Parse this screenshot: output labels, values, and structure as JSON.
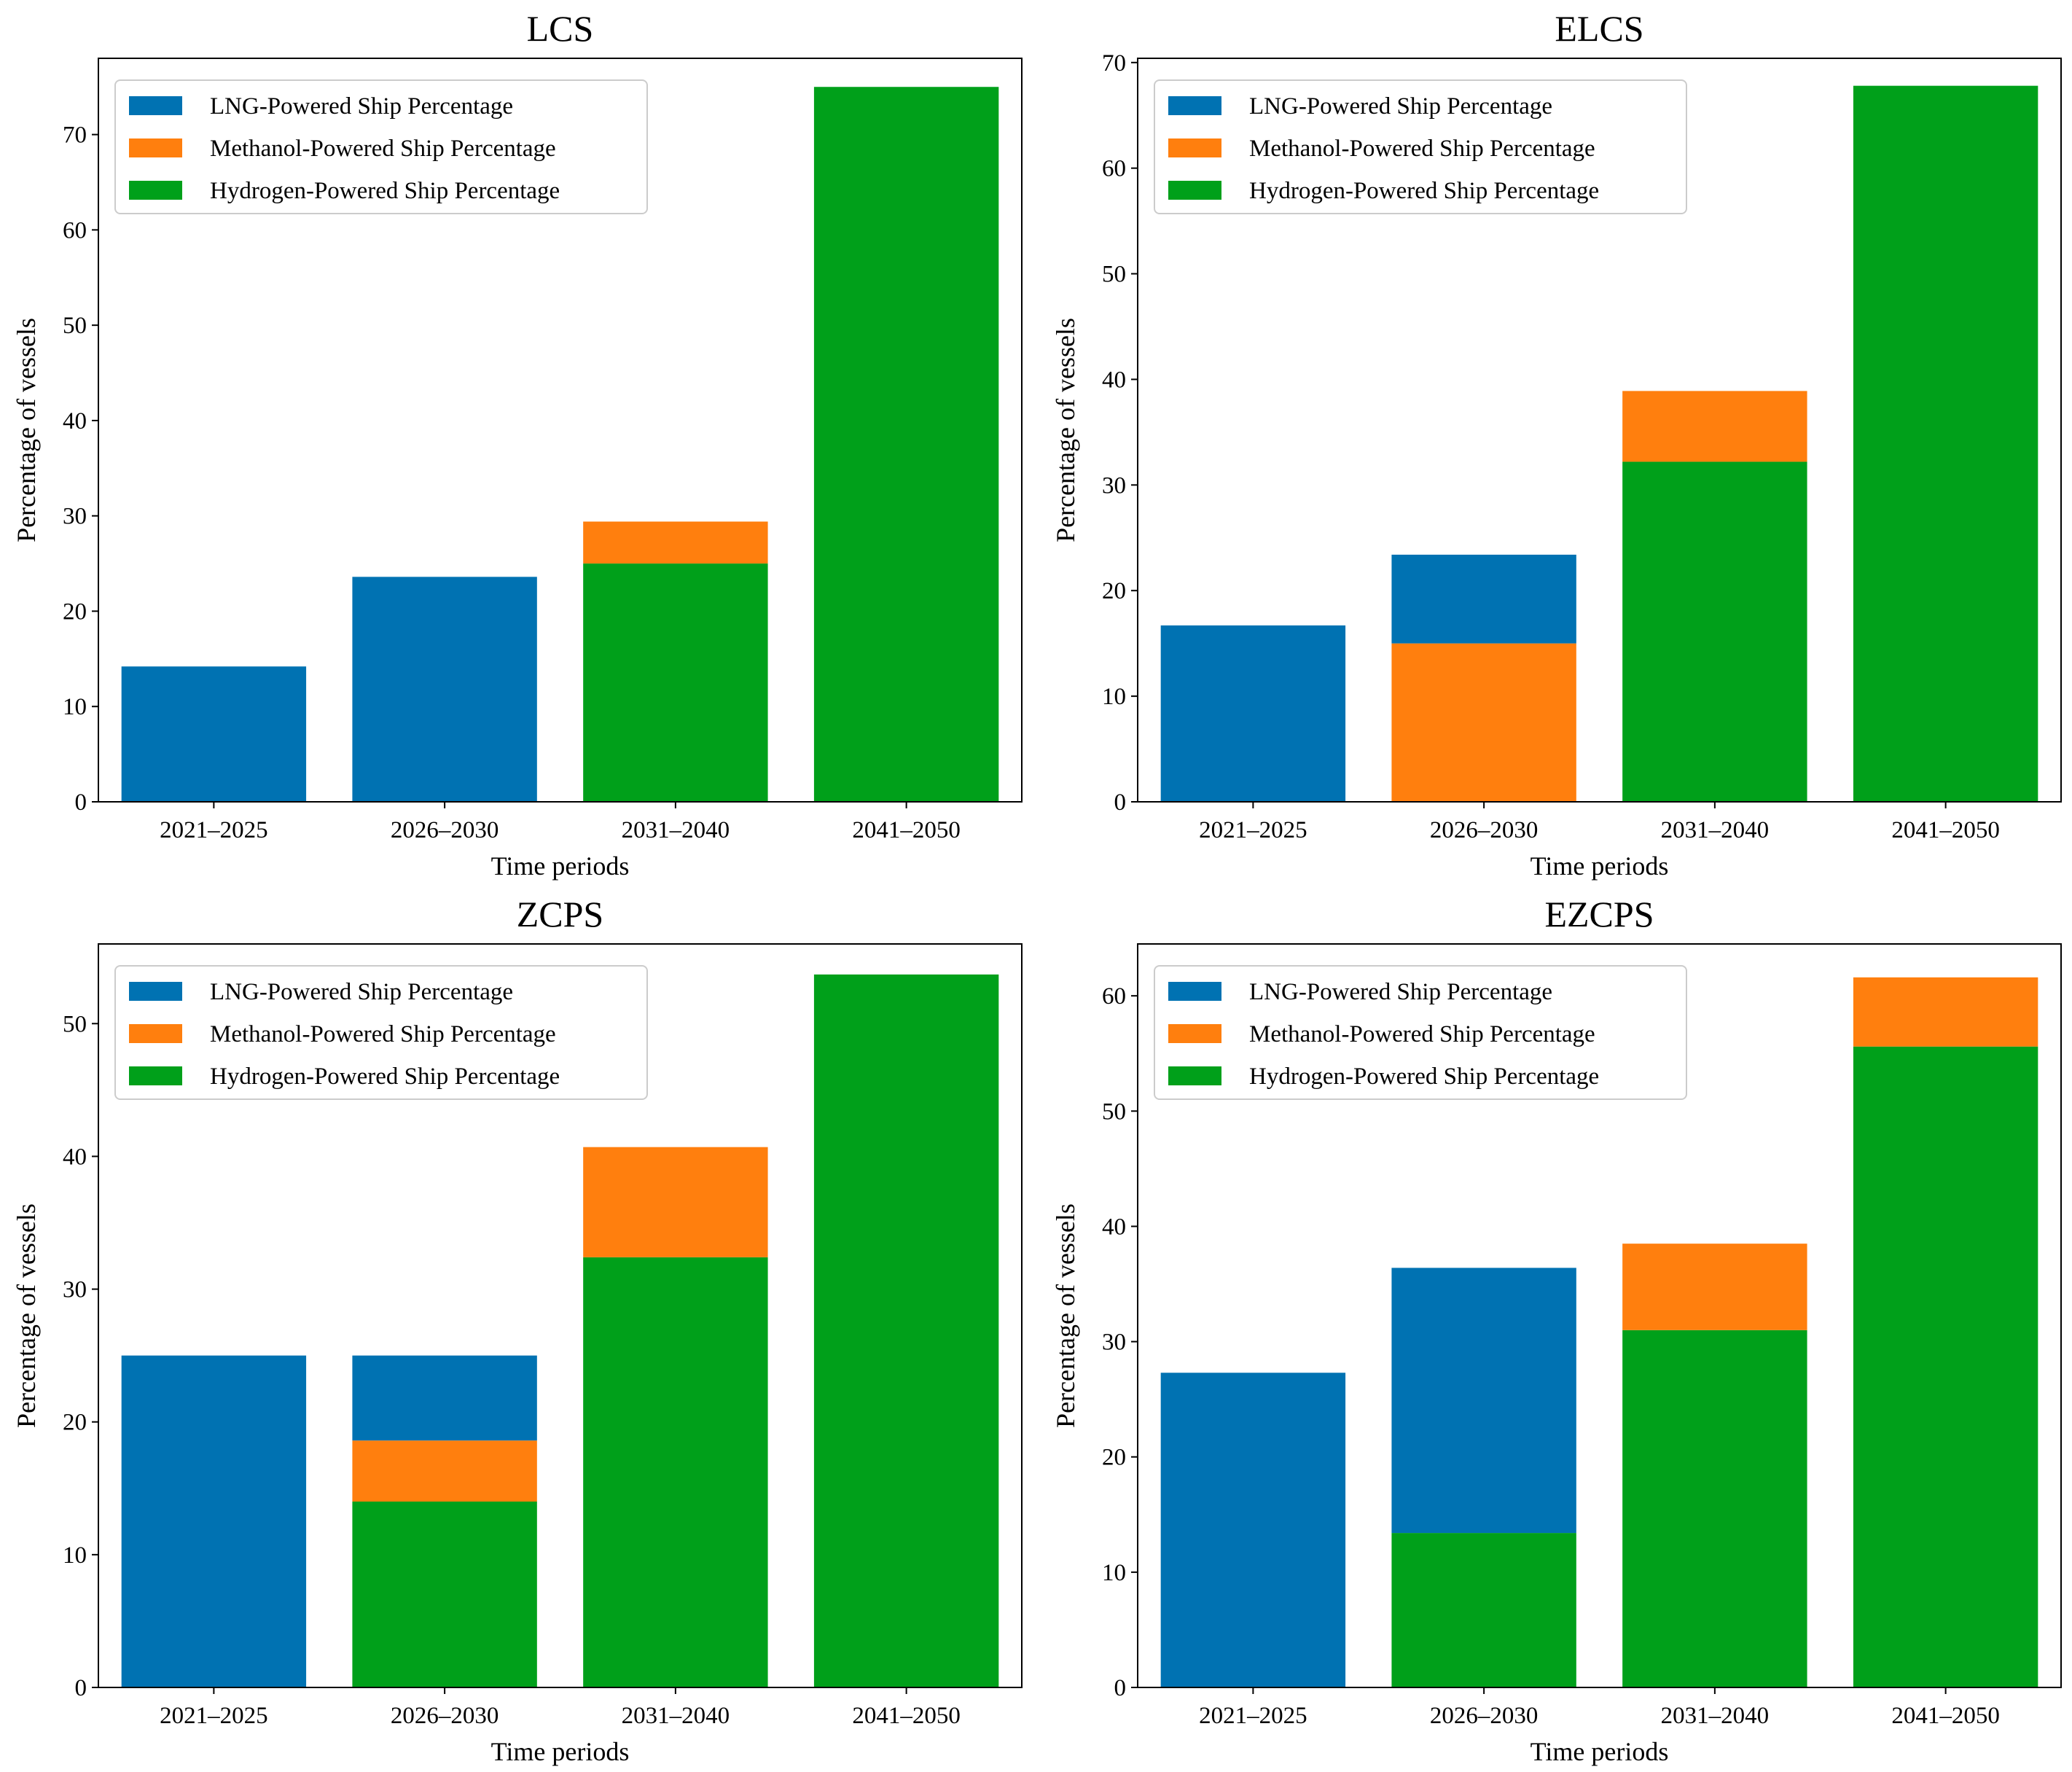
{
  "colors": {
    "lng": "#0072b2",
    "methanol": "#ff7f0e",
    "hydrogen": "#00a01a"
  },
  "chart_data": [
    {
      "type": "bar",
      "stacked": true,
      "title": "LCS",
      "xlabel": "Time periods",
      "ylabel": "Percentage of vessels",
      "categories": [
        "2021–2025",
        "2026–2030",
        "2031–2040",
        "2041–2050"
      ],
      "ylim": [
        0,
        78
      ],
      "yticks": [
        0,
        10,
        20,
        30,
        40,
        50,
        60,
        70
      ],
      "legend_position": "upper-left",
      "legend": [
        "LNG-Powered Ship Percentage",
        "Methanol-Powered Ship Percentage",
        "Hydrogen-Powered Ship Percentage"
      ],
      "series": [
        {
          "name": "Hydrogen-Powered Ship Percentage",
          "key": "hydrogen",
          "values": [
            0,
            0,
            25.0,
            75.0
          ]
        },
        {
          "name": "Methanol-Powered Ship Percentage",
          "key": "methanol",
          "values": [
            0,
            0,
            4.4,
            0
          ]
        },
        {
          "name": "LNG-Powered Ship Percentage",
          "key": "lng",
          "values": [
            14.2,
            23.6,
            0,
            0
          ]
        }
      ]
    },
    {
      "type": "bar",
      "stacked": true,
      "title": "ELCS",
      "xlabel": "Time periods",
      "ylabel": "Percentage of vessels",
      "categories": [
        "2021–2025",
        "2026–2030",
        "2031–2040",
        "2041–2050"
      ],
      "ylim": [
        0,
        70.4
      ],
      "yticks": [
        0,
        10,
        20,
        30,
        40,
        50,
        60,
        70
      ],
      "legend_position": "upper-left",
      "legend": [
        "LNG-Powered Ship Percentage",
        "Methanol-Powered Ship Percentage",
        "Hydrogen-Powered Ship Percentage"
      ],
      "series": [
        {
          "name": "Hydrogen-Powered Ship Percentage",
          "key": "hydrogen",
          "values": [
            0,
            0,
            32.2,
            67.8
          ]
        },
        {
          "name": "Methanol-Powered Ship Percentage",
          "key": "methanol",
          "values": [
            0,
            15.0,
            6.7,
            0
          ]
        },
        {
          "name": "LNG-Powered Ship Percentage",
          "key": "lng",
          "values": [
            16.7,
            8.4,
            0,
            0
          ]
        }
      ]
    },
    {
      "type": "bar",
      "stacked": true,
      "title": "ZCPS",
      "xlabel": "Time periods",
      "ylabel": "Percentage of vessels",
      "categories": [
        "2021–2025",
        "2026–2030",
        "2031–2040",
        "2041–2050"
      ],
      "ylim": [
        0,
        56
      ],
      "yticks": [
        0,
        10,
        20,
        30,
        40,
        50
      ],
      "legend_position": "upper-left",
      "legend": [
        "LNG-Powered Ship Percentage",
        "Methanol-Powered Ship Percentage",
        "Hydrogen-Powered Ship Percentage"
      ],
      "series": [
        {
          "name": "Hydrogen-Powered Ship Percentage",
          "key": "hydrogen",
          "values": [
            0,
            14.0,
            32.4,
            53.7
          ]
        },
        {
          "name": "Methanol-Powered Ship Percentage",
          "key": "methanol",
          "values": [
            0,
            4.6,
            8.3,
            0
          ]
        },
        {
          "name": "LNG-Powered Ship Percentage",
          "key": "lng",
          "values": [
            25.0,
            6.4,
            0,
            0
          ]
        }
      ]
    },
    {
      "type": "bar",
      "stacked": true,
      "title": "EZCPS",
      "xlabel": "Time periods",
      "ylabel": "Percentage of vessels",
      "categories": [
        "2021–2025",
        "2026–2030",
        "2031–2040",
        "2041–2050"
      ],
      "ylim": [
        0,
        64.5
      ],
      "yticks": [
        0,
        10,
        20,
        30,
        40,
        50,
        60
      ],
      "legend_position": "upper-left",
      "legend": [
        "LNG-Powered Ship Percentage",
        "Methanol-Powered Ship Percentage",
        "Hydrogen-Powered Ship Percentage"
      ],
      "series": [
        {
          "name": "Hydrogen-Powered Ship Percentage",
          "key": "hydrogen",
          "values": [
            0,
            13.4,
            31.0,
            55.6
          ]
        },
        {
          "name": "Methanol-Powered Ship Percentage",
          "key": "methanol",
          "values": [
            0,
            0,
            7.5,
            6.0
          ]
        },
        {
          "name": "LNG-Powered Ship Percentage",
          "key": "lng",
          "values": [
            27.3,
            23.0,
            0,
            0
          ]
        }
      ]
    }
  ]
}
